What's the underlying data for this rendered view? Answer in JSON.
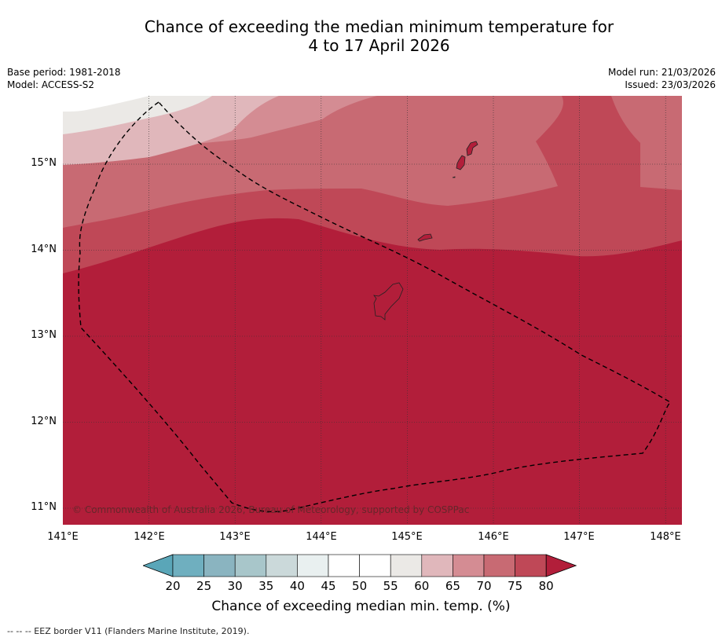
{
  "title": {
    "line1": "Chance of exceeding the median minimum temperature for",
    "line2": "4 to 17 April 2026"
  },
  "meta": {
    "base_period": "Base period: 1981-2018",
    "model": "Model: ACCESS-S2",
    "model_run": "Model run: 21/03/2026",
    "issued": "Issued: 23/03/2026"
  },
  "axes": {
    "lat_labels": [
      "15°N",
      "14°N",
      "13°N",
      "12°N",
      "11°N"
    ],
    "lon_labels": [
      "141°E",
      "142°E",
      "143°E",
      "144°E",
      "145°E",
      "146°E",
      "147°E",
      "148°E"
    ]
  },
  "copyright": "© Commonwealth of Australia 2026, Bureau of Meteorology, supported by COSPPac",
  "colorbar": {
    "tick_labels": [
      "20",
      "25",
      "30",
      "35",
      "40",
      "45",
      "50",
      "55",
      "60",
      "65",
      "70",
      "75",
      "80"
    ],
    "colors": [
      "#5aa6b8",
      "#6fafbf",
      "#8ab4c0",
      "#a8c6ca",
      "#cbd9da",
      "#e9f0f0",
      "#ffffff",
      "#ffffff",
      "#ebe9e6",
      "#e0b7bb",
      "#d48c93",
      "#c86a73",
      "#bf4857",
      "#b21e3a"
    ],
    "title": "Chance of exceeding median min. temp. (%)"
  },
  "footnote": "--  --  -- EEZ border V11 (Flanders Marine Institute, 2019)."
}
